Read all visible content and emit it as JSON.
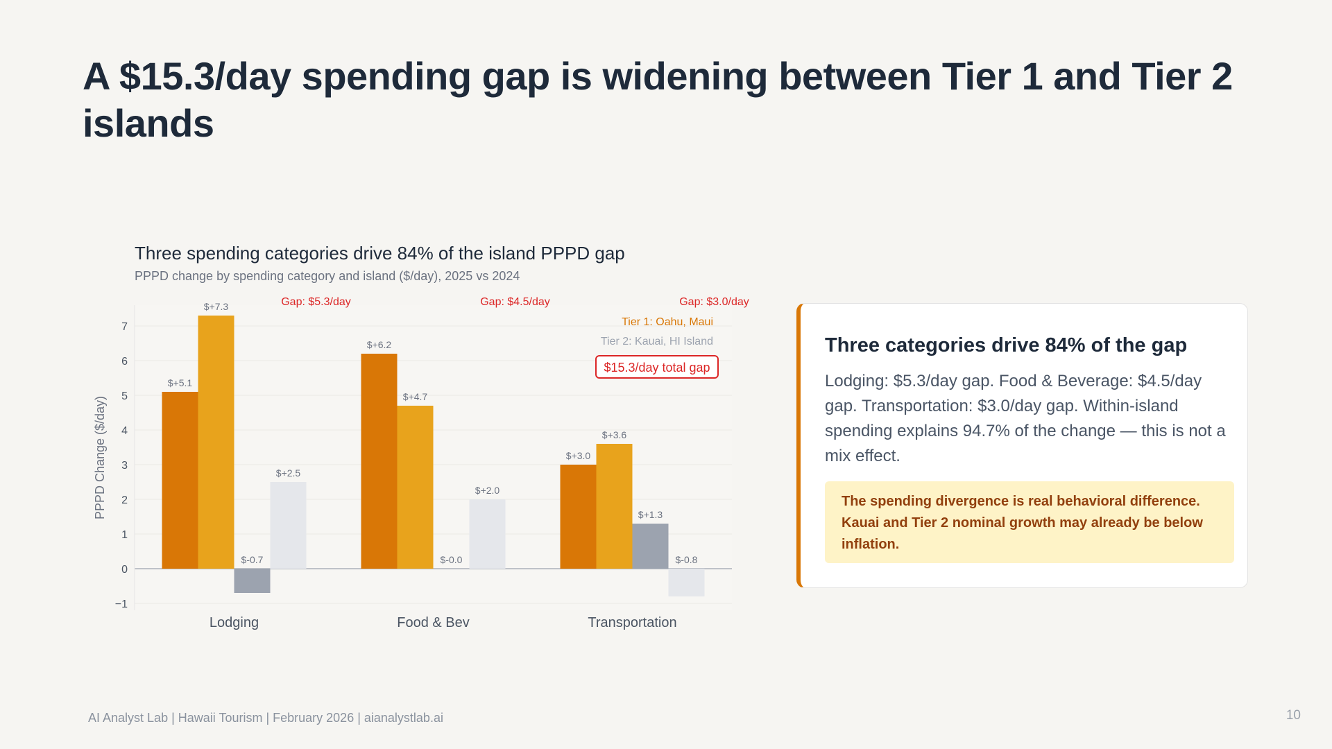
{
  "slide": {
    "title": "A $15.3/day spending gap is widening between Tier 1 and Tier 2 islands",
    "footer": "AI Analyst Lab | Hawaii Tourism | February 2026 | aianalystlab.ai",
    "page_number": "10"
  },
  "card": {
    "title": "Three categories drive 84% of the gap",
    "body": "Lodging: $5.3/day gap. Food & Beverage: $4.5/day gap. Transportation: $3.0/day gap. Within-island spending explains 94.7% of the change — this is not a mix effect.",
    "callout": "The spending divergence is real behavioral difference. Kauai and Tier 2 nominal growth may already be below inflation.",
    "accent_color": "#d97706",
    "callout_bg": "#fef3c7",
    "callout_text_color": "#92400e"
  },
  "chart_data": {
    "type": "bar",
    "title": "Three spending categories drive 84% of the island PPPD gap",
    "subtitle": "PPPD change by spending category and island ($/day), 2025 vs 2024",
    "ylabel": "PPPD Change ($/day)",
    "xlabel": "",
    "ylim": [
      -1.2,
      7.6
    ],
    "yticks": [
      {
        "v": -1,
        "label": "−1"
      },
      {
        "v": 0,
        "label": "0"
      },
      {
        "v": 1,
        "label": "1"
      },
      {
        "v": 2,
        "label": "2"
      },
      {
        "v": 3,
        "label": "3"
      },
      {
        "v": 4,
        "label": "4"
      },
      {
        "v": 5,
        "label": "5"
      },
      {
        "v": 6,
        "label": "6"
      },
      {
        "v": 7,
        "label": "7"
      }
    ],
    "categories": [
      "Lodging",
      "Food & Bev",
      "Transportation"
    ],
    "series": [
      {
        "values": [
          5.1,
          6.2,
          3.0
        ],
        "labels": [
          "$+5.1",
          "$+6.2",
          "$+3.0"
        ],
        "color": "#d97706"
      },
      {
        "values": [
          7.3,
          4.7,
          3.6
        ],
        "labels": [
          "$+7.3",
          "$+4.7",
          "$+3.6"
        ],
        "color": "#e8a31c"
      },
      {
        "values": [
          -0.7,
          -0.0,
          1.3
        ],
        "labels": [
          "$-0.7",
          "$-0.0",
          "$+1.3"
        ],
        "color": "#9ca3af"
      },
      {
        "values": [
          2.5,
          2.0,
          -0.8
        ],
        "labels": [
          "$+2.5",
          "$+2.0",
          "$-0.8"
        ],
        "color": "#e5e7eb"
      }
    ],
    "gap_labels": [
      "Gap: $5.3/day",
      "Gap: $4.5/day",
      "Gap: $3.0/day"
    ],
    "gap_color": "#dc2626",
    "legend_notes": [
      {
        "text": "Tier 1: Oahu, Maui",
        "color": "#d97706"
      },
      {
        "text": "Tier 2: Kauai, HI Island",
        "color": "#9ca3af"
      }
    ],
    "total_gap_label": "$15.3/day total gap",
    "grid": true,
    "legend_position": "top-right"
  }
}
